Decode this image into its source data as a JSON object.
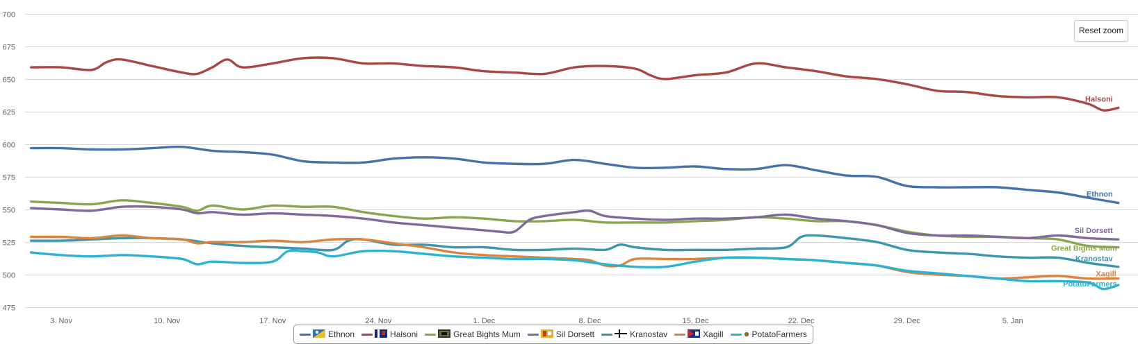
{
  "chart_data": {
    "type": "line",
    "title": "",
    "xlabel": "",
    "ylabel": "",
    "ylim": [
      475,
      700
    ],
    "yticks": [
      475,
      500,
      525,
      550,
      575,
      600,
      625,
      650,
      675,
      700
    ],
    "xticks": [
      "3. Nov",
      "10. Nov",
      "17. Nov",
      "24. Nov",
      "1. Dec",
      "8. Dec",
      "15. Dec",
      "22. Dec",
      "29. Dec",
      "5. Jan"
    ],
    "xtick_days": [
      2,
      9,
      16,
      23,
      30,
      37,
      44,
      51,
      58,
      65
    ],
    "x_unit_note": "days",
    "grid": "horizontal",
    "legend": "bottom-center",
    "series": [
      {
        "name": "Ethnon",
        "color": "#4572a7",
        "label": "Ethnon",
        "x": [
          0,
          2,
          4,
          6,
          8,
          10,
          12,
          14,
          16,
          18,
          20,
          22,
          24,
          26,
          28,
          30,
          32,
          34,
          36,
          38,
          40,
          42,
          44,
          46,
          48,
          50,
          52,
          54,
          56,
          58,
          60,
          62,
          64,
          66,
          68,
          70,
          72
        ],
        "y": [
          597,
          597,
          596,
          596,
          597,
          598,
          595,
          594,
          592,
          587,
          586,
          586,
          589,
          590,
          589,
          586,
          585,
          585,
          588,
          585,
          582,
          582,
          583,
          581,
          581,
          584,
          580,
          576,
          575,
          568,
          567,
          567,
          567,
          565,
          563,
          559,
          555
        ]
      },
      {
        "name": "Halsoni",
        "color": "#aa4643",
        "label": "Halsoni",
        "x": [
          0,
          2,
          4,
          5,
          6,
          8,
          10,
          11,
          12,
          13,
          14,
          16,
          18,
          20,
          22,
          24,
          26,
          28,
          30,
          32,
          34,
          36,
          38,
          40,
          41,
          42,
          44,
          46,
          48,
          50,
          52,
          54,
          56,
          58,
          60,
          62,
          64,
          66,
          68,
          70,
          71,
          72
        ],
        "y": [
          659,
          659,
          657,
          663,
          665,
          660,
          655,
          654,
          659,
          665,
          659,
          662,
          666,
          666,
          662,
          662,
          660,
          659,
          656,
          655,
          654,
          659,
          660,
          658,
          653,
          650,
          653,
          655,
          662,
          659,
          656,
          652,
          650,
          646,
          641,
          640,
          637,
          636,
          636,
          631,
          626,
          628
        ]
      },
      {
        "name": "Great Bights Mum",
        "color": "#89a54e",
        "label": "Great Bights Mum",
        "x": [
          0,
          2,
          4,
          6,
          8,
          10,
          11,
          12,
          14,
          16,
          18,
          20,
          22,
          24,
          26,
          28,
          30,
          32,
          34,
          36,
          38,
          40,
          42,
          44,
          46,
          48,
          50,
          52,
          54,
          56,
          58,
          60,
          62,
          64,
          66,
          68,
          70,
          72
        ],
        "y": [
          556,
          555,
          554,
          557,
          555,
          552,
          549,
          553,
          550,
          553,
          552,
          552,
          548,
          545,
          543,
          544,
          543,
          541,
          541,
          542,
          540,
          540,
          540,
          541,
          542,
          544,
          543,
          541,
          541,
          538,
          533,
          530,
          529,
          529,
          528,
          527,
          522,
          521
        ]
      },
      {
        "name": "Sil Dorsett",
        "color": "#80699b",
        "label": "Sil Dorsett",
        "x": [
          0,
          2,
          4,
          6,
          8,
          10,
          11,
          12,
          14,
          16,
          18,
          20,
          22,
          24,
          26,
          28,
          30,
          31,
          32,
          33,
          34,
          36,
          37,
          38,
          40,
          42,
          44,
          46,
          48,
          50,
          52,
          54,
          56,
          58,
          60,
          62,
          64,
          66,
          68,
          70,
          72
        ],
        "y": [
          551,
          550,
          549,
          552,
          552,
          550,
          547,
          548,
          546,
          547,
          546,
          545,
          543,
          540,
          538,
          536,
          534,
          533,
          533,
          542,
          545,
          548,
          549,
          545,
          543,
          542,
          543,
          543,
          544,
          546,
          543,
          541,
          538,
          532,
          530,
          530,
          529,
          528,
          530,
          528,
          527
        ]
      },
      {
        "name": "Kranostav",
        "color": "#3d96ae",
        "label": "Kranostav",
        "x": [
          0,
          2,
          4,
          6,
          8,
          10,
          12,
          14,
          16,
          18,
          20,
          21,
          22,
          24,
          26,
          28,
          30,
          32,
          34,
          36,
          38,
          39,
          40,
          42,
          44,
          46,
          48,
          50,
          51,
          52,
          54,
          56,
          58,
          60,
          62,
          64,
          66,
          68,
          70,
          72
        ],
        "y": [
          526,
          526,
          527,
          528,
          528,
          527,
          524,
          522,
          521,
          520,
          519,
          526,
          527,
          523,
          523,
          521,
          521,
          519,
          519,
          520,
          519,
          523,
          521,
          519,
          519,
          519,
          520,
          521,
          529,
          530,
          528,
          525,
          519,
          517,
          516,
          514,
          513,
          513,
          509,
          506
        ]
      },
      {
        "name": "Xagill",
        "color": "#db843d",
        "label": "Xagill",
        "x": [
          0,
          2,
          4,
          6,
          8,
          10,
          11,
          12,
          14,
          16,
          18,
          20,
          22,
          24,
          26,
          28,
          30,
          32,
          34,
          36,
          37,
          38,
          39,
          40,
          42,
          44,
          46,
          48,
          50,
          52,
          54,
          56,
          58,
          60,
          62,
          64,
          66,
          68,
          70,
          72
        ],
        "y": [
          529,
          529,
          528,
          530,
          528,
          527,
          524,
          525,
          525,
          526,
          525,
          527,
          527,
          524,
          521,
          517,
          515,
          514,
          513,
          512,
          511,
          507,
          507,
          512,
          512,
          512,
          513,
          513,
          512,
          511,
          509,
          507,
          502,
          500,
          499,
          497,
          498,
          499,
          497,
          497
        ]
      },
      {
        "name": "PotatoFarmers",
        "color": "#2bb3d1",
        "label": "PotatoFarmers",
        "x": [
          0,
          2,
          4,
          6,
          8,
          10,
          11,
          12,
          14,
          16,
          17,
          18,
          19,
          20,
          22,
          24,
          26,
          28,
          30,
          32,
          34,
          36,
          38,
          40,
          42,
          44,
          46,
          48,
          50,
          52,
          54,
          56,
          58,
          60,
          62,
          64,
          66,
          68,
          70,
          71,
          72
        ],
        "y": [
          517,
          515,
          514,
          515,
          514,
          512,
          508,
          510,
          509,
          510,
          518,
          518,
          517,
          514,
          518,
          518,
          516,
          514,
          513,
          512,
          512,
          511,
          508,
          506,
          506,
          510,
          513,
          513,
          512,
          511,
          509,
          507,
          503,
          501,
          499,
          497,
          495,
          495,
          494,
          489,
          492
        ]
      }
    ]
  },
  "legend": {
    "items": [
      "Ethnon",
      "Halsoni",
      "Great Bights Mum",
      "Sil Dorsett",
      "Kranostav",
      "Xagill",
      "PotatoFarmers"
    ],
    "icons": [
      "flag-ethnon-icon",
      "flag-halsoni-icon",
      "flag-great-bights-mum-icon",
      "flag-sil-dorsett-icon",
      "flag-kranostav-icon",
      "flag-xagill-icon",
      "potato-icon"
    ]
  },
  "controls": {
    "reset_zoom_label": "Reset zoom"
  }
}
